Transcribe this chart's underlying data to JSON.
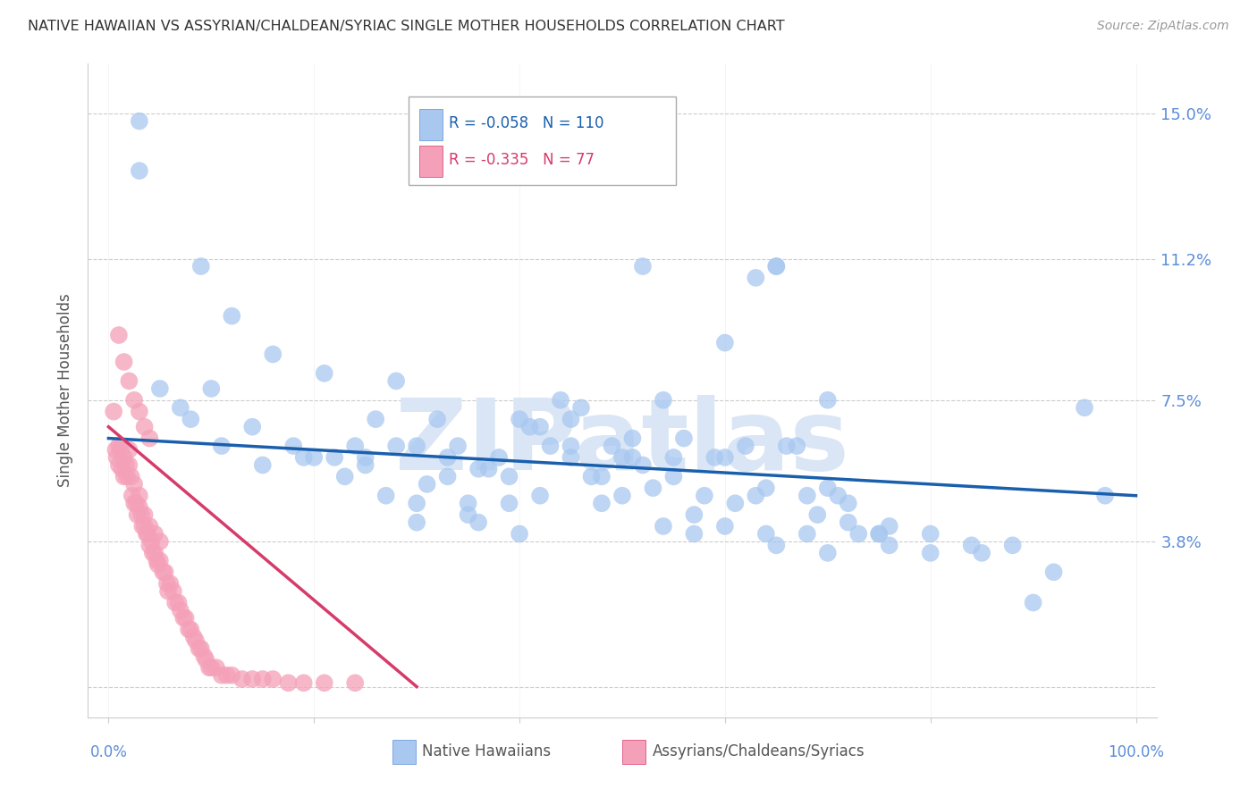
{
  "title": "NATIVE HAWAIIAN VS ASSYRIAN/CHALDEAN/SYRIAC SINGLE MOTHER HOUSEHOLDS CORRELATION CHART",
  "source": "Source: ZipAtlas.com",
  "ylabel": "Single Mother Households",
  "yticks": [
    0.0,
    0.038,
    0.075,
    0.112,
    0.15
  ],
  "ytick_labels": [
    "",
    "3.8%",
    "7.5%",
    "11.2%",
    "15.0%"
  ],
  "xlim": [
    -0.02,
    1.02
  ],
  "ylim": [
    -0.008,
    0.163
  ],
  "xticks": [
    0.0,
    0.2,
    0.4,
    0.6,
    0.8,
    1.0
  ],
  "blue_label": "Native Hawaiians",
  "pink_label": "Assyrians/Chaldeans/Syriacs",
  "blue_R": "-0.058",
  "blue_N": "110",
  "pink_R": "-0.335",
  "pink_N": "77",
  "blue_color": "#a8c8f0",
  "pink_color": "#f4a0b8",
  "blue_line_color": "#1a5fac",
  "pink_line_color": "#d63b6a",
  "watermark": "ZIPatlas",
  "watermark_color": "#dae6f5",
  "grid_color": "#cccccc",
  "label_color": "#5b8dd9",
  "blue_line_start_y": 0.065,
  "blue_line_end_y": 0.05,
  "pink_line_start_x": 0.0,
  "pink_line_start_y": 0.068,
  "pink_line_end_x": 0.3,
  "pink_line_end_y": 0.0,
  "blue_x": [
    0.03,
    0.09,
    0.12,
    0.16,
    0.21,
    0.24,
    0.26,
    0.28,
    0.3,
    0.32,
    0.34,
    0.36,
    0.38,
    0.4,
    0.42,
    0.44,
    0.46,
    0.48,
    0.5,
    0.52,
    0.54,
    0.56,
    0.58,
    0.6,
    0.62,
    0.64,
    0.66,
    0.68,
    0.7,
    0.72,
    0.07,
    0.1,
    0.14,
    0.18,
    0.22,
    0.25,
    0.28,
    0.31,
    0.33,
    0.35,
    0.37,
    0.39,
    0.41,
    0.43,
    0.45,
    0.47,
    0.49,
    0.51,
    0.53,
    0.55,
    0.57,
    0.59,
    0.61,
    0.63,
    0.65,
    0.67,
    0.69,
    0.71,
    0.73,
    0.76,
    0.05,
    0.08,
    0.11,
    0.15,
    0.19,
    0.23,
    0.27,
    0.3,
    0.33,
    0.36,
    0.39,
    0.42,
    0.45,
    0.48,
    0.51,
    0.54,
    0.57,
    0.6,
    0.64,
    0.68,
    0.72,
    0.76,
    0.8,
    0.84,
    0.88,
    0.92,
    0.95,
    0.97,
    0.2,
    0.25,
    0.3,
    0.35,
    0.4,
    0.45,
    0.5,
    0.55,
    0.6,
    0.65,
    0.7,
    0.75,
    0.03,
    0.47,
    0.52,
    0.63,
    0.65,
    0.7,
    0.75,
    0.8,
    0.85,
    0.9
  ],
  "blue_y": [
    0.135,
    0.11,
    0.097,
    0.087,
    0.082,
    0.063,
    0.07,
    0.08,
    0.063,
    0.07,
    0.063,
    0.057,
    0.06,
    0.07,
    0.068,
    0.075,
    0.073,
    0.055,
    0.06,
    0.058,
    0.075,
    0.065,
    0.05,
    0.09,
    0.063,
    0.052,
    0.063,
    0.05,
    0.052,
    0.048,
    0.073,
    0.078,
    0.068,
    0.063,
    0.06,
    0.058,
    0.063,
    0.053,
    0.06,
    0.048,
    0.057,
    0.055,
    0.068,
    0.063,
    0.07,
    0.055,
    0.063,
    0.065,
    0.052,
    0.055,
    0.04,
    0.06,
    0.048,
    0.05,
    0.11,
    0.063,
    0.045,
    0.05,
    0.04,
    0.042,
    0.078,
    0.07,
    0.063,
    0.058,
    0.06,
    0.055,
    0.05,
    0.048,
    0.055,
    0.043,
    0.048,
    0.05,
    0.06,
    0.048,
    0.06,
    0.042,
    0.045,
    0.042,
    0.04,
    0.04,
    0.043,
    0.037,
    0.04,
    0.037,
    0.037,
    0.03,
    0.073,
    0.05,
    0.06,
    0.06,
    0.043,
    0.045,
    0.04,
    0.063,
    0.05,
    0.06,
    0.06,
    0.037,
    0.035,
    0.04,
    0.148,
    0.14,
    0.11,
    0.107,
    0.11,
    0.075,
    0.04,
    0.035,
    0.035,
    0.022
  ],
  "pink_x": [
    0.005,
    0.007,
    0.008,
    0.01,
    0.01,
    0.012,
    0.013,
    0.015,
    0.015,
    0.017,
    0.018,
    0.02,
    0.02,
    0.022,
    0.023,
    0.025,
    0.025,
    0.027,
    0.028,
    0.03,
    0.03,
    0.032,
    0.033,
    0.035,
    0.035,
    0.037,
    0.038,
    0.04,
    0.04,
    0.042,
    0.043,
    0.045,
    0.045,
    0.047,
    0.048,
    0.05,
    0.05,
    0.053,
    0.055,
    0.057,
    0.058,
    0.06,
    0.063,
    0.065,
    0.068,
    0.07,
    0.073,
    0.075,
    0.078,
    0.08,
    0.083,
    0.085,
    0.088,
    0.09,
    0.093,
    0.095,
    0.098,
    0.1,
    0.105,
    0.11,
    0.115,
    0.12,
    0.13,
    0.14,
    0.15,
    0.16,
    0.175,
    0.19,
    0.21,
    0.24,
    0.01,
    0.015,
    0.02,
    0.025,
    0.03,
    0.035,
    0.04
  ],
  "pink_y": [
    0.072,
    0.062,
    0.06,
    0.063,
    0.058,
    0.062,
    0.057,
    0.06,
    0.055,
    0.058,
    0.055,
    0.062,
    0.058,
    0.055,
    0.05,
    0.048,
    0.053,
    0.048,
    0.045,
    0.05,
    0.047,
    0.045,
    0.042,
    0.042,
    0.045,
    0.04,
    0.04,
    0.042,
    0.037,
    0.038,
    0.035,
    0.04,
    0.035,
    0.033,
    0.032,
    0.033,
    0.038,
    0.03,
    0.03,
    0.027,
    0.025,
    0.027,
    0.025,
    0.022,
    0.022,
    0.02,
    0.018,
    0.018,
    0.015,
    0.015,
    0.013,
    0.012,
    0.01,
    0.01,
    0.008,
    0.007,
    0.005,
    0.005,
    0.005,
    0.003,
    0.003,
    0.003,
    0.002,
    0.002,
    0.002,
    0.002,
    0.001,
    0.001,
    0.001,
    0.001,
    0.092,
    0.085,
    0.08,
    0.075,
    0.072,
    0.068,
    0.065
  ]
}
